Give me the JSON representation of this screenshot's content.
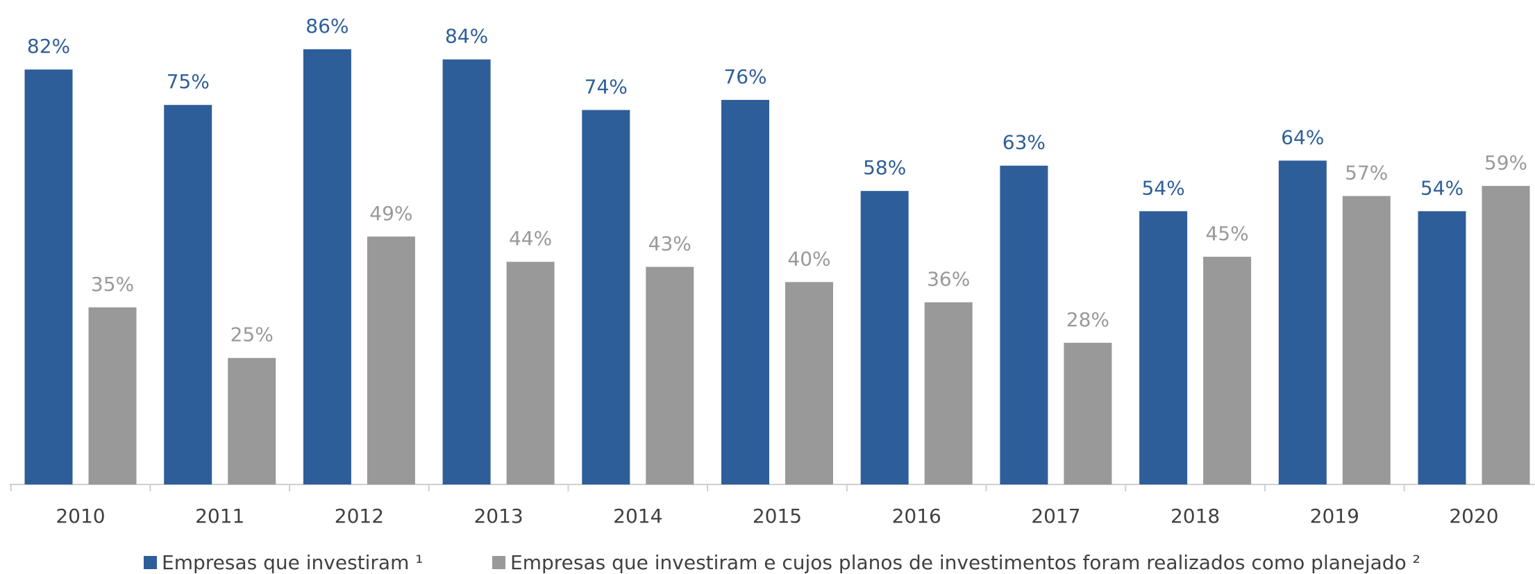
{
  "chart_data": {
    "type": "bar",
    "categories": [
      "2010",
      "2011",
      "2012",
      "2013",
      "2014",
      "2015",
      "2016",
      "2017",
      "2018",
      "2019",
      "2020"
    ],
    "series": [
      {
        "name": "Empresas que investiram ¹",
        "color": "#2e5e99",
        "values": [
          82,
          75,
          86,
          84,
          74,
          76,
          58,
          63,
          54,
          64,
          54
        ],
        "value_labels": [
          "82%",
          "75%",
          "86%",
          "84%",
          "74%",
          "76%",
          "58%",
          "63%",
          "54%",
          "64%",
          "54%"
        ]
      },
      {
        "name": "Empresas que investiram e cujos planos de investimentos foram realizados como planejado ²",
        "color": "#999999",
        "values": [
          35,
          25,
          49,
          44,
          43,
          40,
          36,
          28,
          45,
          57,
          59
        ],
        "value_labels": [
          "35%",
          "25%",
          "49%",
          "44%",
          "43%",
          "40%",
          "36%",
          "28%",
          "45%",
          "57%",
          "59%"
        ]
      }
    ],
    "legend": "bottom"
  }
}
